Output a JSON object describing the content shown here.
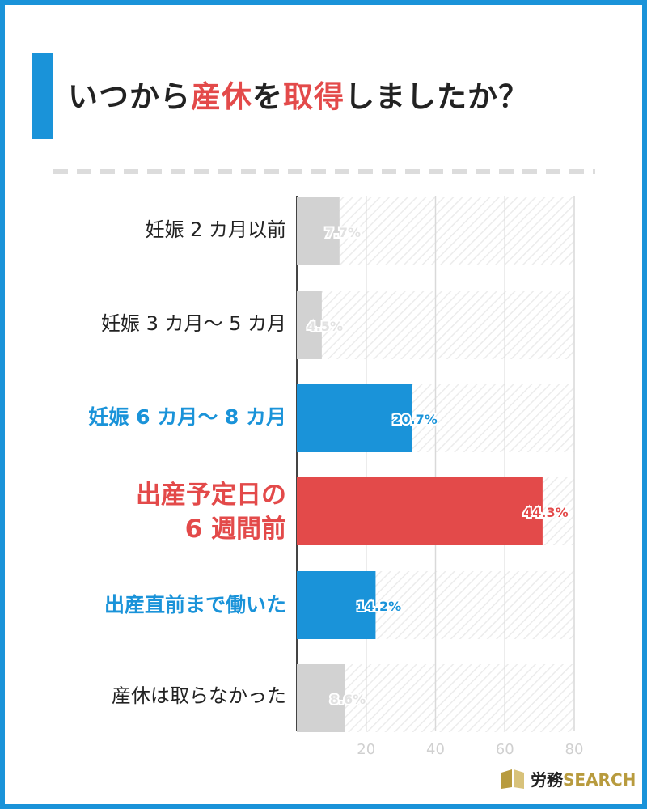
{
  "title": {
    "pre": "いつから",
    "hl1": "産休",
    "mid": "を",
    "hl2": "取得",
    "post": "しましたか？"
  },
  "chart_data": {
    "type": "bar",
    "orientation": "horizontal",
    "categories": [
      "妊娠 2 カ月以前",
      "妊娠 3 カ月～ 5 カ月",
      "妊娠 6 カ月～ 8 カ月",
      "出産予定日の 6 週間前",
      "出産直前まで働いた",
      "産休は取らなかった"
    ],
    "values": [
      7.7,
      4.5,
      20.7,
      44.3,
      14.2,
      8.6
    ],
    "value_labels": [
      "7.7%",
      "4.5%",
      "20.7%",
      "44.3%",
      "14.2%",
      "8.6%"
    ],
    "highlight": [
      "none",
      "none",
      "blue",
      "red",
      "blue",
      "none"
    ],
    "xlim": [
      0,
      50
    ],
    "ticks": [
      "20",
      "40",
      "60",
      "80"
    ],
    "grid": true,
    "colors": {
      "gray": "#d2d2d2",
      "blue": "#1a93d9",
      "red": "#e34a4a",
      "hatch": "#eeeeee"
    }
  },
  "labels": {
    "cat0": "妊娠 2 カ月以前",
    "cat1": "妊娠 3 カ月～ 5 カ月",
    "cat2": "妊娠 6 カ月～ 8 カ月",
    "cat3_line1": "出産予定日の",
    "cat3_line2": "6 週間前",
    "cat4": "出産直前まで働いた",
    "cat5": "産休は取らなかった"
  },
  "logo": {
    "kanji": "労務",
    "search": "SEARCH",
    "icon": "book-logo-icon"
  }
}
